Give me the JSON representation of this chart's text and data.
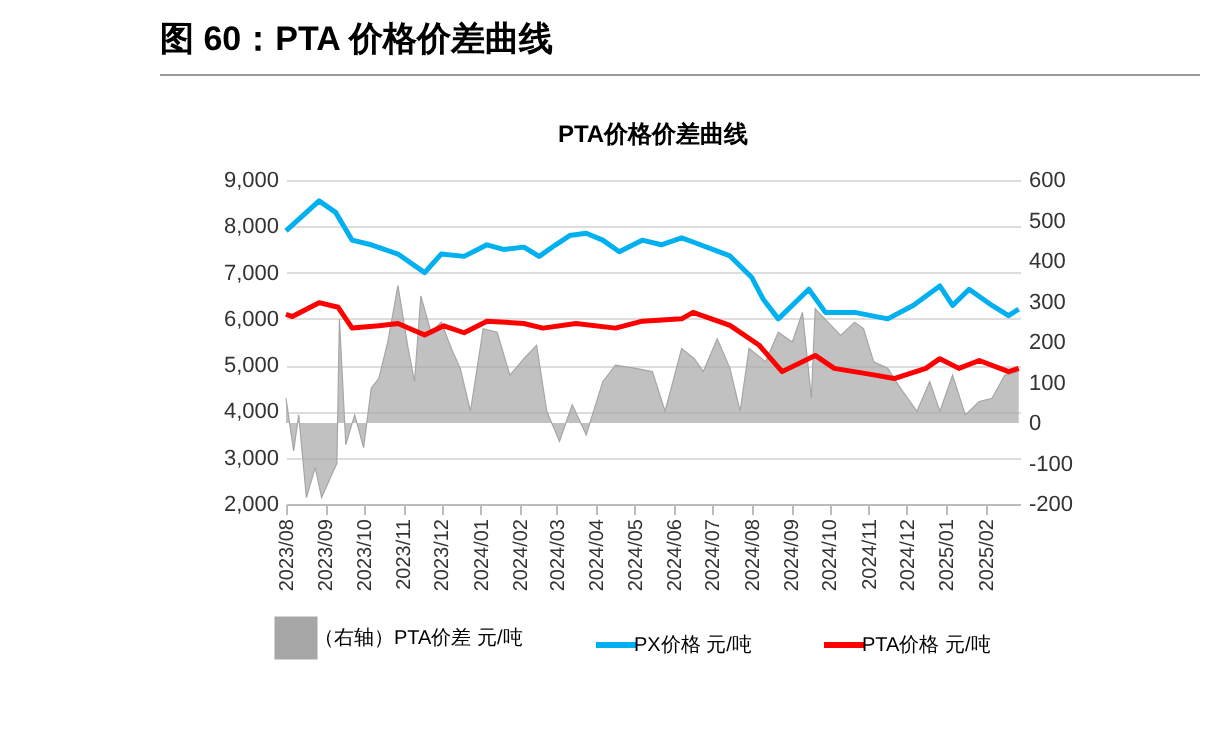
{
  "chart_data": {
    "type": "line",
    "title": "图 60：PTA 价格价差曲线",
    "subtitle": "PTA价格价差曲线",
    "xlim": [
      "2023-08-01",
      "2025-02-28"
    ],
    "xticks": [
      {
        "value": "2023-08-01",
        "label": "2023/08"
      },
      {
        "value": "2023-09-01",
        "label": "2023/09"
      },
      {
        "value": "2023-10-01",
        "label": "2023/10"
      },
      {
        "value": "2023-11-01",
        "label": "2023/11"
      },
      {
        "value": "2023-12-01",
        "label": "2023/12"
      },
      {
        "value": "2024-01-01",
        "label": "2024/01"
      },
      {
        "value": "2024-02-01",
        "label": "2024/02"
      },
      {
        "value": "2024-03-01",
        "label": "2024/03"
      },
      {
        "value": "2024-04-01",
        "label": "2024/04"
      },
      {
        "value": "2024-05-01",
        "label": "2024/05"
      },
      {
        "value": "2024-06-01",
        "label": "2024/06"
      },
      {
        "value": "2024-07-01",
        "label": "2024/07"
      },
      {
        "value": "2024-08-01",
        "label": "2024/08"
      },
      {
        "value": "2024-09-01",
        "label": "2024/09"
      },
      {
        "value": "2024-10-01",
        "label": "2024/10"
      },
      {
        "value": "2024-11-01",
        "label": "2024/11"
      },
      {
        "value": "2024-12-01",
        "label": "2024/12"
      },
      {
        "value": "2025-01-01",
        "label": "2025/01"
      },
      {
        "value": "2025-02-01",
        "label": "2025/02"
      }
    ],
    "ylim": [
      2000,
      9000
    ],
    "yticks": [
      {
        "value": 2000,
        "label": "2,000"
      },
      {
        "value": 3000,
        "label": "3,000"
      },
      {
        "value": 4000,
        "label": "4,000"
      },
      {
        "value": 5000,
        "label": "5,000"
      },
      {
        "value": 6000,
        "label": "6,000"
      },
      {
        "value": 7000,
        "label": "7,000"
      },
      {
        "value": 8000,
        "label": "8,000"
      },
      {
        "value": 9000,
        "label": "9,000"
      }
    ],
    "y2lim": [
      -200,
      600
    ],
    "y2ticks": [
      -200,
      -100,
      0,
      100,
      200,
      300,
      400,
      500,
      600
    ],
    "grid": "y",
    "legend": "bottom",
    "series": [
      {
        "name": "（右轴）PTA价差 元/吨",
        "type": "area",
        "axis": "y2",
        "color": "#a6a6a6",
        "x": [
          "2023-08-01",
          "2023-08-07",
          "2023-08-11",
          "2023-08-17",
          "2023-08-24",
          "2023-08-29",
          "2023-09-06",
          "2023-09-10",
          "2023-09-12",
          "2023-09-17",
          "2023-09-24",
          "2023-10-01",
          "2023-10-07",
          "2023-10-13",
          "2023-10-20",
          "2023-10-28",
          "2023-11-05",
          "2023-11-10",
          "2023-11-15",
          "2023-11-23",
          "2023-12-01",
          "2023-12-09",
          "2023-12-16",
          "2023-12-24",
          "2024-01-03",
          "2024-01-14",
          "2024-01-24",
          "2024-02-04",
          "2024-02-14",
          "2024-02-22",
          "2024-03-03",
          "2024-03-13",
          "2024-03-24",
          "2024-04-06",
          "2024-04-16",
          "2024-05-02",
          "2024-05-15",
          "2024-05-25",
          "2024-06-07",
          "2024-06-17",
          "2024-06-24",
          "2024-07-05",
          "2024-07-15",
          "2024-07-23",
          "2024-07-30",
          "2024-08-12",
          "2024-08-22",
          "2024-09-02",
          "2024-09-10",
          "2024-09-17",
          "2024-09-20",
          "2024-09-30",
          "2024-10-10",
          "2024-10-21",
          "2024-10-28",
          "2024-11-05",
          "2024-11-16",
          "2024-11-26",
          "2024-12-09",
          "2024-12-19",
          "2024-12-27",
          "2025-01-06",
          "2025-01-16",
          "2025-01-27",
          "2025-02-06",
          "2025-02-16",
          "2025-02-27"
        ],
        "values": [
          61,
          -69,
          20,
          -184,
          -110,
          -184,
          -127,
          -100,
          257,
          -53,
          20,
          -61,
          86,
          110,
          200,
          339,
          184,
          102,
          314,
          224,
          249,
          184,
          135,
          29,
          233,
          224,
          118,
          159,
          192,
          29,
          -45,
          45,
          -29,
          102,
          143,
          135,
          127,
          29,
          184,
          159,
          127,
          208,
          135,
          29,
          184,
          151,
          224,
          200,
          273,
          61,
          282,
          249,
          216,
          249,
          233,
          151,
          135,
          86,
          29,
          102,
          29,
          118,
          20,
          53,
          61,
          118,
          127
        ]
      },
      {
        "name": "PX价格 元/吨",
        "type": "line",
        "color": "#00b0f0",
        "x": [
          "2023-08-01",
          "2023-08-27",
          "2023-09-09",
          "2023-09-22",
          "2023-10-07",
          "2023-10-28",
          "2023-11-18",
          "2023-12-01",
          "2023-12-19",
          "2024-01-06",
          "2024-01-19",
          "2024-02-04",
          "2024-02-16",
          "2024-02-29",
          "2024-03-11",
          "2024-03-24",
          "2024-04-06",
          "2024-04-19",
          "2024-05-07",
          "2024-05-22",
          "2024-06-07",
          "2024-06-17",
          "2024-07-15",
          "2024-08-01",
          "2024-08-10",
          "2024-08-22",
          "2024-09-15",
          "2024-09-28",
          "2024-10-21",
          "2024-11-16",
          "2024-12-06",
          "2024-12-27",
          "2025-01-06",
          "2025-01-19",
          "2025-02-06",
          "2025-02-19",
          "2025-02-27"
        ],
        "values": [
          7900,
          8550,
          8300,
          7700,
          7600,
          7400,
          7000,
          7400,
          7350,
          7600,
          7500,
          7550,
          7350,
          7600,
          7800,
          7850,
          7700,
          7450,
          7700,
          7600,
          7750,
          7650,
          7360,
          6900,
          6430,
          6000,
          6640,
          6140,
          6140,
          6000,
          6290,
          6710,
          6290,
          6640,
          6290,
          6070,
          6210
        ]
      },
      {
        "name": "PTA价格 元/吨",
        "type": "line",
        "color": "#ff0000",
        "x": [
          "2023-08-01",
          "2023-08-06",
          "2023-08-27",
          "2023-09-11",
          "2023-09-22",
          "2023-10-13",
          "2023-10-28",
          "2023-11-18",
          "2023-12-03",
          "2023-12-19",
          "2024-01-06",
          "2024-02-04",
          "2024-02-19",
          "2024-03-16",
          "2024-04-16",
          "2024-05-07",
          "2024-06-07",
          "2024-06-16",
          "2024-07-15",
          "2024-08-07",
          "2024-08-25",
          "2024-09-20",
          "2024-10-05",
          "2024-11-05",
          "2024-11-21",
          "2024-12-16",
          "2024-12-27",
          "2025-01-11",
          "2025-01-27",
          "2025-02-19",
          "2025-02-27"
        ],
        "values": [
          6100,
          6050,
          6350,
          6250,
          5800,
          5850,
          5900,
          5650,
          5850,
          5700,
          5950,
          5900,
          5800,
          5900,
          5800,
          5950,
          6000,
          6140,
          5860,
          5430,
          4860,
          5210,
          4930,
          4790,
          4710,
          4930,
          5140,
          4930,
          5100,
          4860,
          4930
        ]
      }
    ]
  }
}
